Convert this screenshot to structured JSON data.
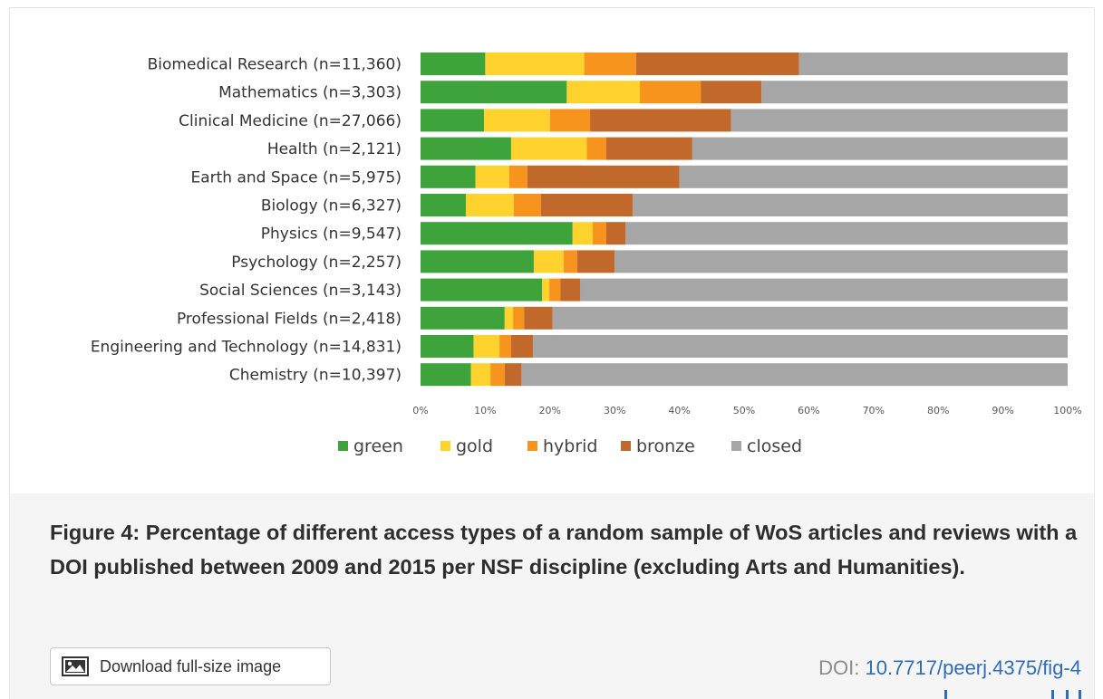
{
  "chart_data": {
    "type": "bar",
    "orientation": "horizontal",
    "stacked": true,
    "categories": [
      "Biomedical Research (n=11,360)",
      "Mathematics (n=3,303)",
      "Clinical Medicine (n=27,066)",
      "Health (n=2,121)",
      "Earth and Space (n=5,975)",
      "Biology (n=6,327)",
      "Physics (n=9,547)",
      "Psychology (n=2,257)",
      "Social Sciences (n=3,143)",
      "Professional Fields (n=2,418)",
      "Engineering and Technology (n=14,831)",
      "Chemistry (n=10,397)"
    ],
    "series": [
      {
        "name": "green",
        "color": "#3fa33b",
        "values": [
          10,
          22.6,
          9.8,
          14,
          8.5,
          7,
          23.5,
          17.5,
          18.8,
          13,
          8.2,
          7.8
        ]
      },
      {
        "name": "gold",
        "color": "#ffd22e",
        "values": [
          15.3,
          11.3,
          10.2,
          11.7,
          5.2,
          7.4,
          3.1,
          4.6,
          1.1,
          1.3,
          4,
          3
        ]
      },
      {
        "name": "hybrid",
        "color": "#f7941d",
        "values": [
          8,
          9.4,
          6.2,
          3,
          2.8,
          4.2,
          2.1,
          2.1,
          1.7,
          1.7,
          1.8,
          2.2
        ]
      },
      {
        "name": "bronze",
        "color": "#c0692a",
        "values": [
          25.2,
          9.4,
          21.8,
          13.3,
          23.5,
          14.2,
          3,
          5.8,
          3.1,
          4.4,
          3.4,
          2.6
        ]
      },
      {
        "name": "closed",
        "color": "#a6a6a6",
        "values": [
          41.5,
          47.3,
          52,
          58,
          60,
          67.2,
          68.3,
          70,
          75.3,
          79.6,
          82.6,
          84.4
        ]
      }
    ],
    "xlim": [
      0,
      100
    ],
    "xticks": [
      "0%",
      "10%",
      "20%",
      "30%",
      "40%",
      "50%",
      "60%",
      "70%",
      "80%",
      "90%",
      "100%"
    ],
    "legend_position": "bottom",
    "grid": false,
    "title": "",
    "xlabel": "",
    "ylabel": ""
  },
  "caption": {
    "text": "Figure 4: Percentage of different access types of a random sample of WoS articles and reviews with a DOI published between 2009 and 2015 per NSF discipline (excluding Arts and Humanities)."
  },
  "download": {
    "label": "Download full-size image",
    "icon": "image-icon"
  },
  "doi": {
    "prefix": "DOI:",
    "value": "10.7717/peerj.4375/fig-4"
  }
}
